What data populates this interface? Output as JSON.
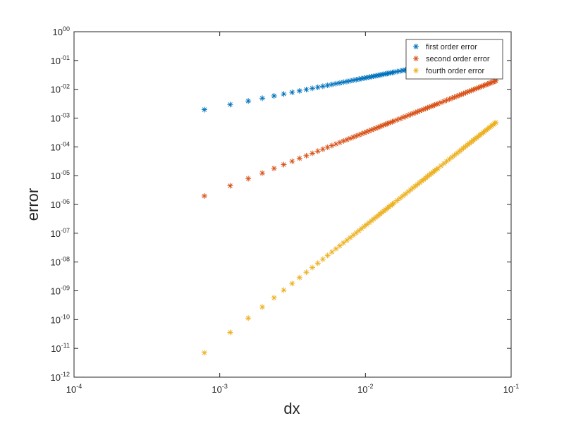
{
  "chart_data": {
    "type": "scatter",
    "xlabel": "dx",
    "ylabel": "error",
    "xscale": "log",
    "yscale": "log",
    "xlim": [
      0.0001,
      0.1
    ],
    "ylim": [
      1e-12,
      1
    ],
    "x_ticks": [
      {
        "base": "10",
        "exp": "-4"
      },
      {
        "base": "10",
        "exp": "-3"
      },
      {
        "base": "10",
        "exp": "-2"
      },
      {
        "base": "10",
        "exp": "-1"
      }
    ],
    "y_ticks": [
      {
        "base": "10",
        "exp": "00"
      },
      {
        "base": "10",
        "exp": "-01"
      },
      {
        "base": "10",
        "exp": "-02"
      },
      {
        "base": "10",
        "exp": "-03"
      },
      {
        "base": "10",
        "exp": "-04"
      },
      {
        "base": "10",
        "exp": "-05"
      },
      {
        "base": "10",
        "exp": "-06"
      },
      {
        "base": "10",
        "exp": "-07"
      },
      {
        "base": "10",
        "exp": "-08"
      },
      {
        "base": "10",
        "exp": "-09"
      },
      {
        "base": "10",
        "exp": "-10"
      },
      {
        "base": "10",
        "exp": "-11"
      },
      {
        "base": "10",
        "exp": "-12"
      }
    ],
    "x": [
      0.000785,
      0.00118,
      0.00157,
      0.00196,
      0.00236,
      0.00275,
      0.00314,
      0.00353,
      0.00393,
      0.00432,
      0.00471,
      0.0051,
      0.0055,
      0.00589,
      0.00628,
      0.00667,
      0.00707,
      0.00746,
      0.00785,
      0.00825,
      0.00864,
      0.00903,
      0.00942,
      0.00982,
      0.0102,
      0.0106,
      0.011,
      0.0114,
      0.0118,
      0.0122,
      0.0126,
      0.013,
      0.0134,
      0.0138,
      0.0141,
      0.0145,
      0.0149,
      0.0153,
      0.0157,
      0.0165,
      0.0173,
      0.0181,
      0.0188,
      0.0196,
      0.0204,
      0.0212,
      0.022,
      0.0228,
      0.0236,
      0.0244,
      0.0251,
      0.0259,
      0.0267,
      0.0275,
      0.0283,
      0.0291,
      0.0298,
      0.0306,
      0.0314,
      0.033,
      0.0346,
      0.0361,
      0.0377,
      0.0393,
      0.0408,
      0.0424,
      0.044,
      0.0455,
      0.0471,
      0.0487,
      0.0503,
      0.0518,
      0.0534,
      0.055,
      0.0565,
      0.0581,
      0.0597,
      0.0612,
      0.0628,
      0.0644,
      0.066,
      0.0675,
      0.0691,
      0.0707,
      0.0722,
      0.0738,
      0.0754,
      0.077,
      0.0785
    ],
    "series": [
      {
        "name": "first order error",
        "color": "#0072BD",
        "coefficient": 2.5,
        "order": 1,
        "x_max": 0.028
      },
      {
        "name": "second order error",
        "color": "#D95319",
        "coefficient": 3.2,
        "order": 2
      },
      {
        "name": "fourth order error",
        "color": "#EDB120",
        "coefficient": 18.5,
        "order": 4
      }
    ],
    "legend": "top-right",
    "grid": false
  }
}
